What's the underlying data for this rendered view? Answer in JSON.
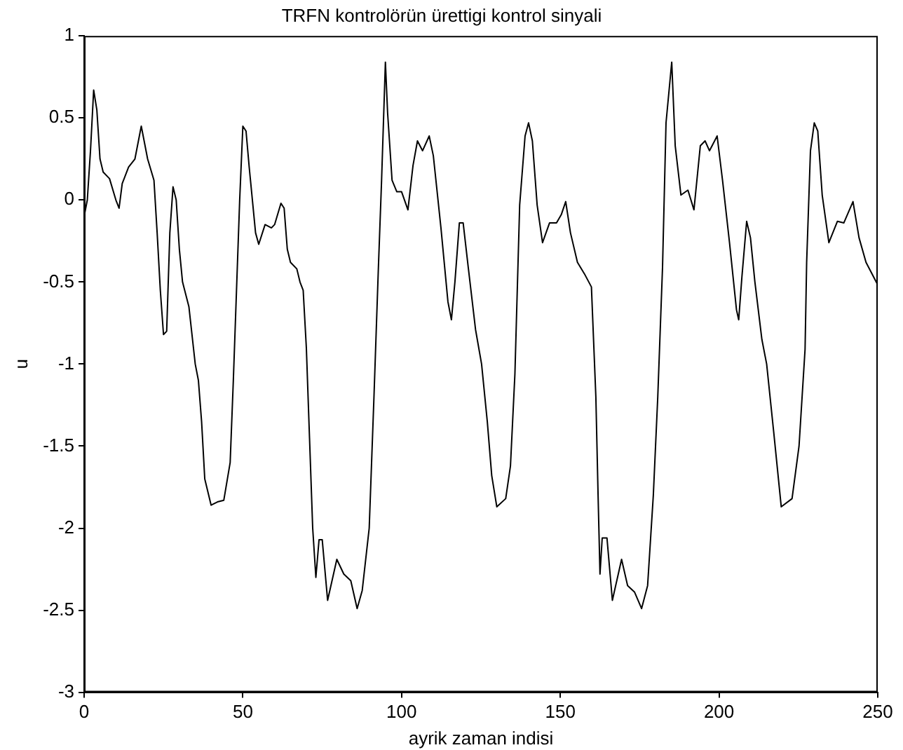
{
  "chart_data": {
    "type": "line",
    "title": "TRFN kontrolörün ürettigi kontrol sinyali",
    "xlabel": "ayrik zaman indisi",
    "ylabel": "u",
    "xlim": [
      0,
      250
    ],
    "xticks": [
      0,
      50,
      100,
      150,
      200,
      250
    ],
    "ylim": [
      -3,
      1
    ],
    "yticks": [
      1,
      0.5,
      0,
      -0.5,
      -1,
      -1.5,
      -2,
      -2.5,
      -3
    ],
    "grid": false,
    "legend": false,
    "marker": "none",
    "line_style": "solid",
    "series": [
      {
        "color": "#000000",
        "x": [
          0,
          1,
          2,
          3,
          4,
          5,
          6,
          8,
          10,
          11,
          12,
          14,
          16,
          18,
          20,
          22,
          23,
          24,
          25,
          26,
          27,
          28,
          29,
          30,
          31,
          33,
          35,
          36,
          37,
          38,
          40,
          42,
          44,
          46,
          47,
          48,
          49,
          50,
          51,
          52,
          54,
          55,
          57,
          59,
          60,
          62,
          63,
          64,
          65,
          67,
          68,
          69,
          70,
          71,
          72,
          73,
          74,
          75,
          76.7,
          79.6,
          81.8,
          84,
          86,
          87.6,
          89.8,
          91.3,
          92.7,
          93.7,
          94.9,
          95.6,
          97,
          98.5,
          100,
          102,
          103.6,
          105,
          106.6,
          108.7,
          110,
          112.4,
          114.6,
          115.7,
          116.8,
          118.2,
          119.4,
          121,
          123.3,
          125.2,
          127,
          128.4,
          130,
          132.8,
          134.3,
          135.7,
          137.2,
          138.9,
          140,
          141.2,
          142.7,
          144.4,
          146.6,
          148.8,
          150.3,
          151.7,
          153.2,
          155.4,
          157.6,
          159.8,
          161.2,
          161.9,
          162.5,
          163.2,
          164.7,
          166.4,
          169.3,
          171.2,
          173.4,
          175.6,
          177.5,
          179.3,
          180.7,
          182.2,
          183.3,
          185.1,
          186.2,
          188,
          190.2,
          192.1,
          194.1,
          195.6,
          197,
          199.4,
          201.1,
          203.3,
          205.5,
          206.2,
          207.2,
          208.7,
          209.9,
          211.3,
          213.5,
          215,
          217.2,
          219.6,
          223,
          225.2,
          227.1,
          227.6,
          228.8,
          230,
          231.1,
          232.5,
          234.6,
          237.3,
          239.3,
          242.2,
          244.1,
          246.3,
          249.8
        ],
        "values": [
          -0.1,
          0,
          0.3,
          0.67,
          0.55,
          0.25,
          0.17,
          0.13,
          0,
          -0.05,
          0.1,
          0.2,
          0.25,
          0.45,
          0.25,
          0.12,
          -0.2,
          -0.55,
          -0.82,
          -0.8,
          -0.2,
          0.08,
          0,
          -0.3,
          -0.5,
          -0.65,
          -1,
          -1.1,
          -1.35,
          -1.7,
          -1.86,
          -1.84,
          -1.83,
          -1.6,
          -1.1,
          -0.55,
          0,
          0.45,
          0.42,
          0.2,
          -0.2,
          -0.27,
          -0.15,
          -0.17,
          -0.15,
          -0.02,
          -0.05,
          -0.3,
          -0.38,
          -0.42,
          -0.5,
          -0.55,
          -0.9,
          -1.45,
          -2,
          -2.3,
          -2.07,
          -2.07,
          -2.44,
          -2.19,
          -2.28,
          -2.32,
          -2.49,
          -2.38,
          -2,
          -1.2,
          -0.41,
          0.12,
          0.84,
          0.53,
          0.12,
          0.05,
          0.05,
          -0.06,
          0.21,
          0.36,
          0.3,
          0.39,
          0.27,
          -0.17,
          -0.62,
          -0.73,
          -0.5,
          -0.14,
          -0.14,
          -0.41,
          -0.79,
          -1,
          -1.35,
          -1.68,
          -1.87,
          -1.82,
          -1.62,
          -1.06,
          -0.03,
          0.39,
          0.47,
          0.36,
          -0.03,
          -0.26,
          -0.14,
          -0.14,
          -0.09,
          -0.01,
          -0.2,
          -0.38,
          -0.45,
          -0.53,
          -1.2,
          -1.8,
          -2.28,
          -2.06,
          -2.06,
          -2.44,
          -2.19,
          -2.35,
          -2.39,
          -2.49,
          -2.35,
          -1.8,
          -1.2,
          -0.41,
          0.47,
          0.84,
          0.33,
          0.03,
          0.06,
          -0.06,
          0.33,
          0.36,
          0.3,
          0.39,
          0.12,
          -0.26,
          -0.67,
          -0.73,
          -0.47,
          -0.13,
          -0.23,
          -0.5,
          -0.85,
          -1,
          -1.41,
          -1.87,
          -1.82,
          -1.5,
          -0.91,
          -0.38,
          0.3,
          0.47,
          0.42,
          0.03,
          -0.26,
          -0.13,
          -0.14,
          -0.01,
          -0.23,
          -0.38,
          -0.51
        ]
      }
    ]
  }
}
